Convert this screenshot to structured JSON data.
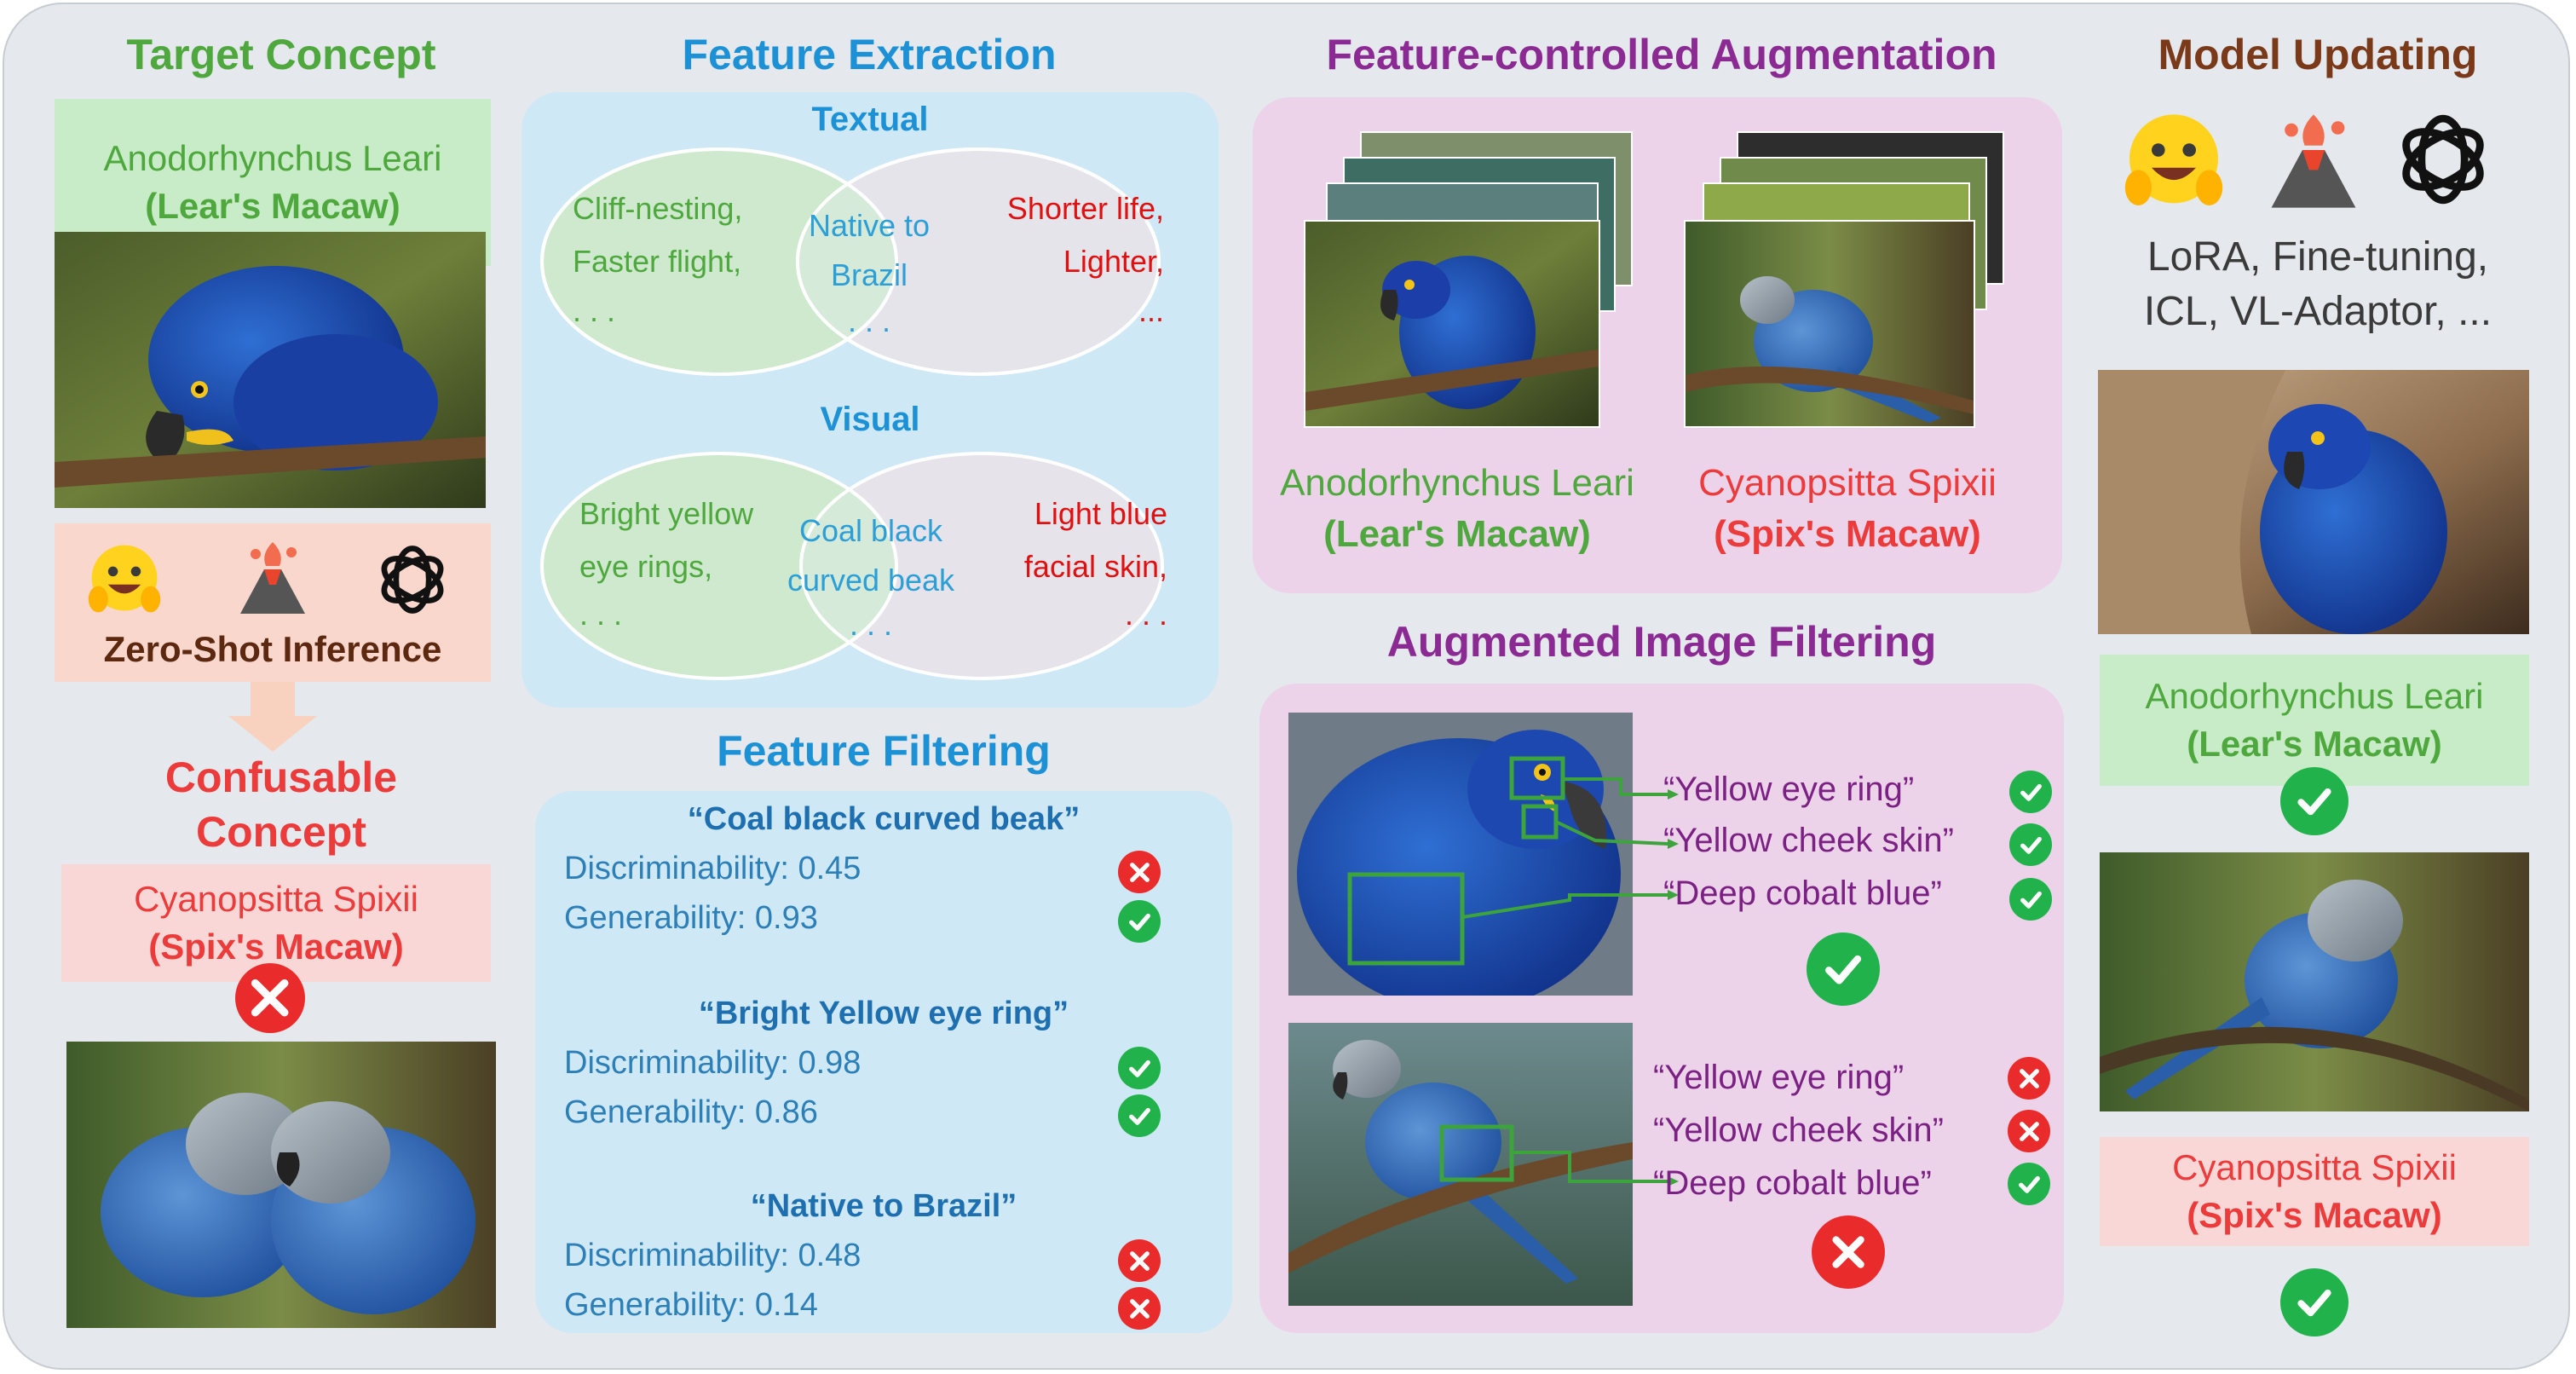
{
  "colors": {
    "green": "#4ea83d",
    "blue": "#1d91d6",
    "purple": "#8b2a93",
    "brown": "#7a3a1a",
    "red": "#ec3b3b",
    "light_green_box": "#c8ecc7",
    "light_red_box": "#fad7d7",
    "light_blue_panel": "#cfe8f6",
    "light_purple_panel": "#ecd3ea"
  },
  "col1": {
    "header": "Target Concept",
    "target_name": "Anodorhynchus Leari",
    "target_common": "(Lear's Macaw)",
    "zero_shot_label": "Zero-Shot Inference",
    "confusable_header_line1": "Confusable",
    "confusable_header_line2": "Concept",
    "confusable_name": "Cyanopsitta Spixii",
    "confusable_common": "(Spix's Macaw)",
    "icons": [
      "hugging-face-icon",
      "volcano-icon",
      "openai-icon"
    ]
  },
  "col2": {
    "header": "Feature Extraction",
    "textual_label": "Textual",
    "textual_left_1": "Cliff-nesting,",
    "textual_left_2": "Faster flight,",
    "textual_left_3": ". . .",
    "textual_mid_1": "Native to",
    "textual_mid_2": "Brazil",
    "textual_mid_3": ". . .",
    "textual_right_1": "Shorter life,",
    "textual_right_2": "Lighter,",
    "textual_right_3": "...",
    "visual_label": "Visual",
    "visual_left_1": "Bright yellow",
    "visual_left_2": "eye rings,",
    "visual_left_3": ". . .",
    "visual_mid_1": "Coal black",
    "visual_mid_2": "curved beak",
    "visual_mid_3": ". . .",
    "visual_right_1": "Light blue",
    "visual_right_2": "facial skin,",
    "visual_right_3": ". . .",
    "filter_header": "Feature Filtering",
    "features": [
      {
        "title": "“Coal black curved beak”",
        "disc": "Discriminability: 0.45",
        "gen": "Generability: 0.93",
        "disc_ok": false,
        "gen_ok": true
      },
      {
        "title": "“Bright Yellow eye ring”",
        "disc": "Discriminability: 0.98",
        "gen": "Generability: 0.86",
        "disc_ok": true,
        "gen_ok": true
      },
      {
        "title": "“Native to Brazil”",
        "disc": "Discriminability:  0.48",
        "gen": "Generability: 0.14",
        "disc_ok": false,
        "gen_ok": false
      }
    ]
  },
  "col3": {
    "header": "Feature-controlled Augmentation",
    "left_name": "Anodorhynchus Leari",
    "left_common": "(Lear's Macaw)",
    "right_name": "Cyanopsitta Spixii",
    "right_common": "(Spix's Macaw)",
    "filter_header": "Augmented Image Filtering",
    "top_checks": [
      {
        "label": "“Yellow eye ring”",
        "ok": true
      },
      {
        "label": "“Yellow cheek skin”",
        "ok": true
      },
      {
        "label": "“Deep cobalt blue”",
        "ok": true
      }
    ],
    "top_result_ok": true,
    "bottom_checks": [
      {
        "label": "“Yellow eye ring”",
        "ok": false
      },
      {
        "label": "“Yellow cheek skin”",
        "ok": false
      },
      {
        "label": "“Deep cobalt blue”",
        "ok": true
      }
    ],
    "bottom_result_ok": false
  },
  "col4": {
    "header": "Model Updating",
    "methods_line1": "LoRA, Fine-tuning,",
    "methods_line2": "ICL, VL-Adaptor, ...",
    "target_name": "Anodorhynchus Leari",
    "target_common": "(Lear's Macaw)",
    "confusable_name": "Cyanopsitta Spixii",
    "confusable_common": "(Spix's Macaw)",
    "icons": [
      "hugging-face-icon",
      "volcano-icon",
      "openai-icon"
    ]
  }
}
